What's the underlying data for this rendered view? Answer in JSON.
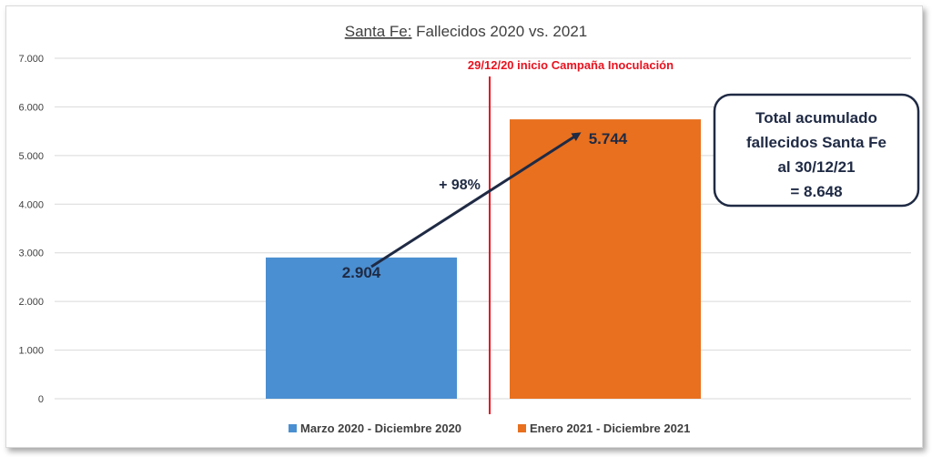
{
  "chart_data": {
    "type": "bar",
    "title_prefix": "Santa Fe:",
    "title_rest": " Fallecidos 2020 vs. 2021",
    "categories": [
      "Marzo 2020 - Diciembre 2020",
      "Enero 2021 - Diciembre 2021"
    ],
    "values": [
      2904,
      5744
    ],
    "value_labels": [
      "2.904",
      "5.744"
    ],
    "colors": [
      "#4a8fd1",
      "#e8701f"
    ],
    "ylim": [
      0,
      7000
    ],
    "yticks": [
      0,
      1000,
      2000,
      3000,
      4000,
      5000,
      6000,
      7000
    ],
    "ytick_labels": [
      "0",
      "1.000",
      "2.000",
      "3.000",
      "4.000",
      "5.000",
      "6.000",
      "7.000"
    ],
    "grid": true,
    "legend_position": "bottom",
    "vline_label": "29/12/20 inicio Campaña Inoculación",
    "vline_color": "#e8121f",
    "arrow_label": "+ 98%",
    "arrow_color": "#1f2a44",
    "annotation_box": [
      "Total acumulado",
      "fallecidos Santa Fe",
      "al 30/12/21",
      "= 8.648"
    ]
  }
}
